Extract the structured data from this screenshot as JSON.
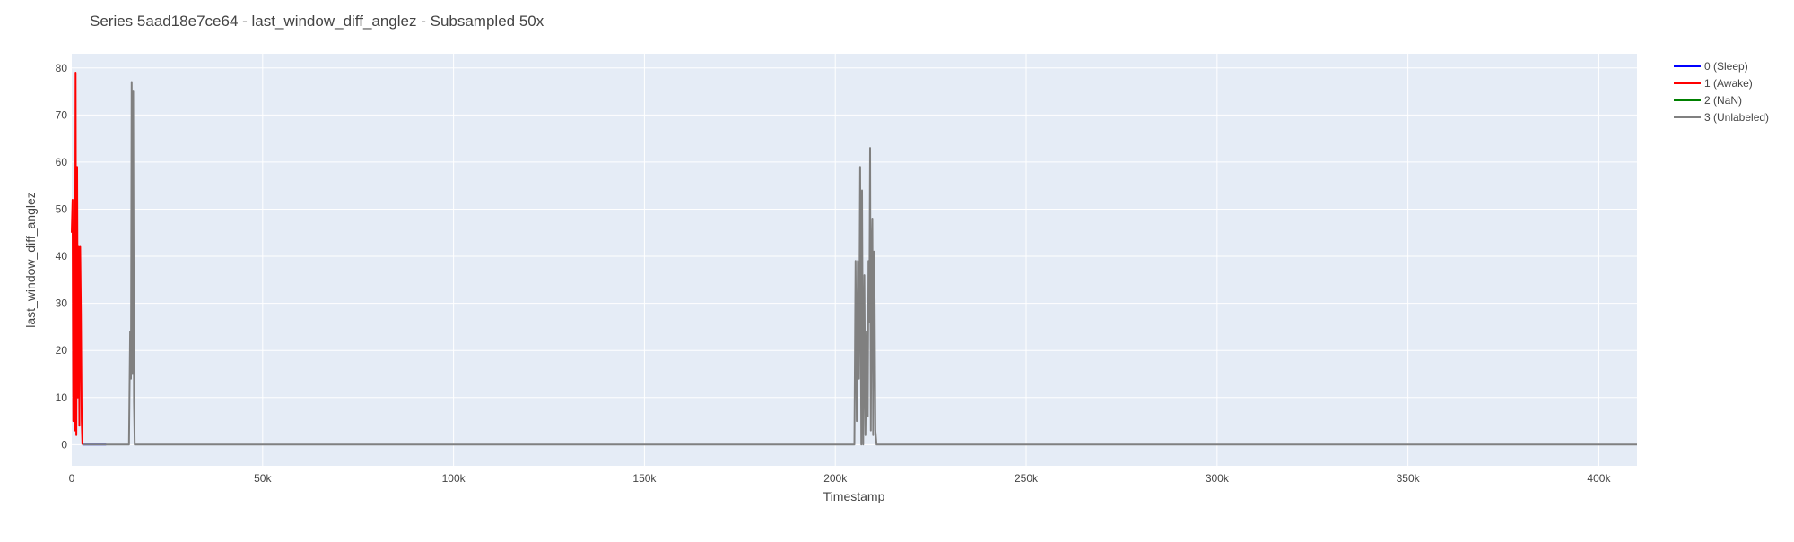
{
  "chart_data": {
    "type": "line",
    "title": "Series 5aad18e7ce64 - last_window_diff_anglez - Subsampled 50x",
    "xlabel": "Timestamp",
    "ylabel": "last_window_diff_anglez",
    "xlim": [
      0,
      410000
    ],
    "ylim": [
      -4.5,
      83
    ],
    "x_ticks": [
      0,
      50000,
      100000,
      150000,
      200000,
      250000,
      300000,
      350000,
      400000
    ],
    "x_tick_labels": [
      "0",
      "50k",
      "100k",
      "150k",
      "200k",
      "250k",
      "300k",
      "350k",
      "400k"
    ],
    "y_ticks": [
      0,
      10,
      20,
      30,
      40,
      50,
      60,
      70,
      80
    ],
    "y_tick_labels": [
      "0",
      "10",
      "20",
      "30",
      "40",
      "50",
      "60",
      "70",
      "80"
    ],
    "grid": true,
    "legend_position": "top-right",
    "colors": {
      "plot_background": "#e5ecf6",
      "grid": "#ffffff"
    },
    "series": [
      {
        "name": "0 (Sleep)",
        "color": "#0000ff",
        "x": [
          2800,
          5000,
          7000,
          9000
        ],
        "y": [
          0,
          0,
          0,
          0
        ]
      },
      {
        "name": "1 (Awake)",
        "color": "#ff0000",
        "x": [
          0,
          200,
          400,
          600,
          800,
          1000,
          1200,
          1400,
          1600,
          1800,
          2000,
          2200,
          2400,
          2600,
          2800
        ],
        "y": [
          45,
          52,
          5,
          37,
          3,
          79,
          2,
          59,
          10,
          42,
          4,
          42,
          28,
          5,
          0
        ]
      },
      {
        "name": "2 (NaN)",
        "color": "#008000",
        "x": [],
        "y": []
      },
      {
        "name": "3 (Unlabeled)",
        "color": "#808080",
        "x": [
          2800,
          15000,
          15300,
          15500,
          15700,
          15900,
          16100,
          16300,
          16500,
          16700,
          16900,
          18000,
          205000,
          205300,
          205600,
          205900,
          206200,
          206500,
          206800,
          207000,
          207300,
          207600,
          207900,
          208200,
          208500,
          208700,
          208900,
          209100,
          209300,
          209500,
          209700,
          209900,
          210100,
          210300,
          210500,
          210800,
          211200,
          410000
        ],
        "y": [
          0,
          0,
          24,
          14,
          77,
          15,
          75,
          9,
          0,
          0,
          0,
          0,
          0,
          39,
          5,
          39,
          14,
          59,
          0,
          54,
          0,
          36,
          2,
          24,
          6,
          39,
          26,
          63,
          3,
          40,
          48,
          2,
          41,
          30,
          3,
          0,
          0,
          0
        ]
      }
    ]
  }
}
